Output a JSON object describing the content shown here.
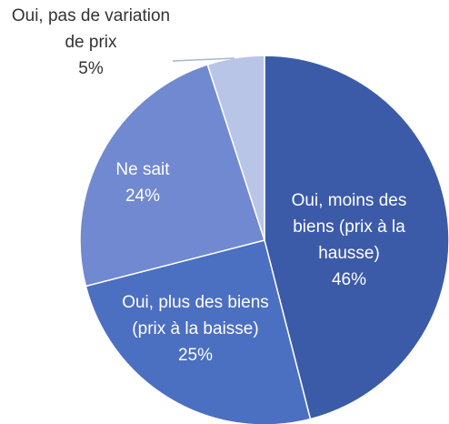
{
  "chart_data": {
    "type": "pie",
    "categories": [
      "Oui, moins des biens (prix à la hausse)",
      "Oui, plus des biens (prix à la baisse)",
      "Ne sait",
      "Oui, pas de variation de prix"
    ],
    "values": [
      46,
      25,
      24,
      5
    ],
    "value_labels": [
      "46%",
      "25%",
      "24%",
      "5%"
    ],
    "colors": [
      "#3b5ba9",
      "#4b6fc1",
      "#7089d0",
      "#b9c5e7"
    ]
  }
}
